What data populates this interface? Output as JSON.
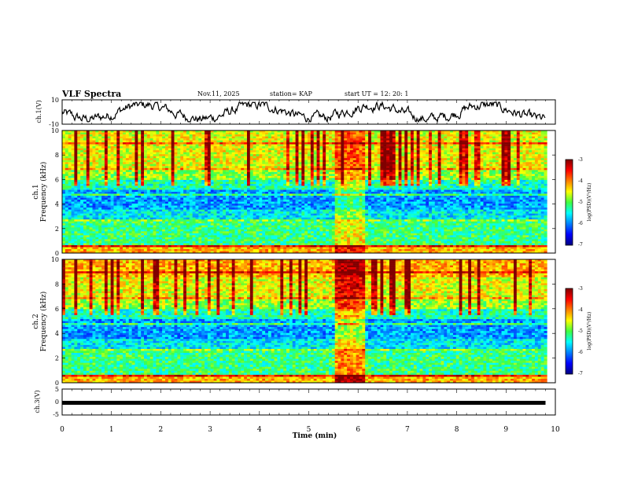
{
  "header": {
    "title": "VLF Spectra",
    "date": "Nov.11, 2025",
    "station": "station= KAP",
    "start": "start  UT  =   12: 20: 1"
  },
  "colors": {
    "line": "#000000",
    "colormap": [
      "#000080",
      "#0000ff",
      "#0080ff",
      "#00ffff",
      "#40ff40",
      "#ffff00",
      "#ff8000",
      "#ff0000",
      "#800000"
    ]
  },
  "chart_data": [
    {
      "type": "line",
      "name": "ch1-waveform",
      "ylabel": "ch.1(V)",
      "ylim": [
        -10,
        10
      ],
      "ytick_labels": [
        "10",
        "-10"
      ],
      "xlim": [
        0,
        10
      ],
      "note": "Noisy voltage trace oscillating roughly between -5 and 5 V over 0–10 min"
    },
    {
      "type": "heatmap",
      "name": "ch1-spectrogram",
      "ylabel": "ch.1\nFrequency (kHz)",
      "ylabel_lines": [
        "ch.1",
        "Frequency (kHz)"
      ],
      "ylim": [
        0,
        10
      ],
      "ytick_labels": [
        "0",
        "2",
        "4",
        "6",
        "8",
        "10"
      ],
      "xlim": [
        0,
        9.83
      ],
      "colorbar": {
        "label": "log(PSD)(V²/Hz)",
        "range": [
          -7,
          -3
        ],
        "tick_labels": [
          "-3",
          "-4",
          "-5",
          "-6",
          "-7"
        ]
      }
    },
    {
      "type": "heatmap",
      "name": "ch2-spectrogram",
      "ylabel": "ch.2\nFrequency (kHz)",
      "ylabel_lines": [
        "ch.2",
        "Frequency (kHz)"
      ],
      "ylim": [
        0,
        10
      ],
      "ytick_labels": [
        "0",
        "2",
        "4",
        "6",
        "8",
        "10"
      ],
      "xlim": [
        0,
        9.83
      ],
      "colorbar": {
        "label": "log(PSD)(V²/Hz)",
        "range": [
          -7,
          -3
        ],
        "tick_labels": [
          "-3",
          "-4",
          "-5",
          "-6",
          "-7"
        ]
      }
    },
    {
      "type": "line",
      "name": "ch3-waveform",
      "ylabel": "ch.3(V)",
      "ylim": [
        -5,
        5
      ],
      "ytick_labels": [
        "5",
        "0",
        "-5"
      ],
      "xlim": [
        0,
        10
      ],
      "value": -0.3,
      "xlabel": "Time  (min)",
      "xtick_labels": [
        "0",
        "1",
        "2",
        "3",
        "4",
        "5",
        "6",
        "7",
        "8",
        "9",
        "10"
      ]
    }
  ]
}
